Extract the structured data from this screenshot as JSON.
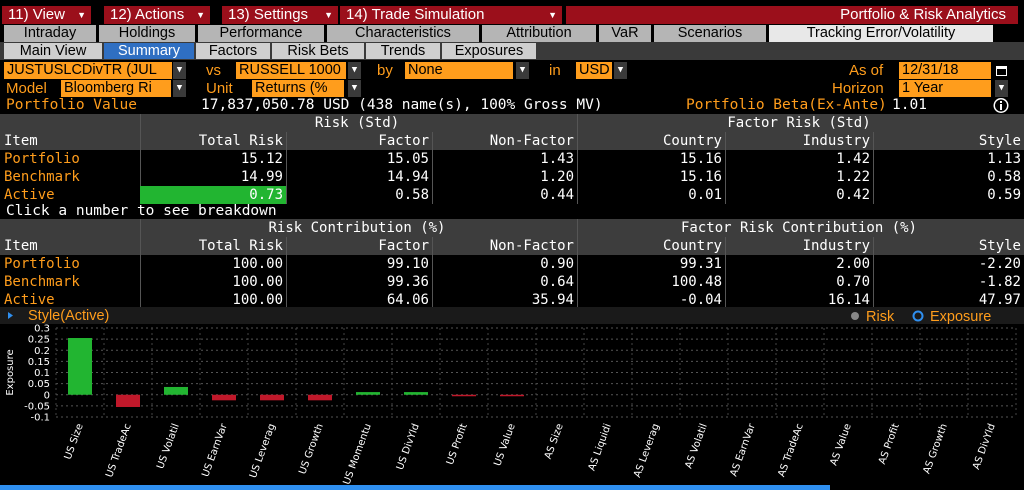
{
  "menu": {
    "items": [
      {
        "label": "11) View"
      },
      {
        "label": "12) Actions"
      },
      {
        "label": "13) Settings"
      },
      {
        "label": "14) Trade Simulation"
      }
    ],
    "app_title": "Portfolio & Risk Analytics"
  },
  "tabs": [
    "Intraday",
    "Holdings",
    "Performance",
    "Characteristics",
    "Attribution",
    "VaR",
    "Scenarios",
    "Tracking Error/Volatility"
  ],
  "active_tab": "Tracking Error/Volatility",
  "subtabs": [
    "Main View",
    "Summary",
    "Factors",
    "Risk Bets",
    "Trends",
    "Exposures"
  ],
  "active_subtab": "Summary",
  "selectors": {
    "portfolio": "JUSTUSLCDivTR (JUL",
    "vs_label": "vs",
    "benchmark": "RUSSELL 1000",
    "by_label": "by",
    "by": "None",
    "in_label": "in",
    "currency": "USD",
    "as_of_label": "As of",
    "as_of": "12/31/18",
    "model_label": "Model",
    "model": "Bloomberg Ri",
    "unit_label": "Unit",
    "unit": "Returns (%",
    "horizon_label": "Horizon",
    "horizon": "1 Year"
  },
  "summary": {
    "pv_label": "Portfolio Value",
    "pv_value": "17,837,050.78 USD (438 name(s), 100% Gross MV)",
    "beta_label": "Portfolio Beta(Ex-Ante)",
    "beta_value": "1.01"
  },
  "risk_table": {
    "group1": "Risk (Std)",
    "group2": "Factor Risk (Std)",
    "columns": [
      "Item",
      "Total Risk",
      "Factor",
      "Non-Factor",
      "Country",
      "Industry",
      "Style"
    ],
    "rows": [
      {
        "item": "Portfolio",
        "values": [
          "15.12",
          "15.05",
          "1.43",
          "15.16",
          "1.42",
          "1.13"
        ]
      },
      {
        "item": "Benchmark",
        "values": [
          "14.99",
          "14.94",
          "1.20",
          "15.16",
          "1.22",
          "0.58"
        ]
      },
      {
        "item": "Active",
        "values": [
          "0.73",
          "0.58",
          "0.44",
          "0.01",
          "0.42",
          "0.59"
        ]
      }
    ]
  },
  "click_hint": "Click a number to see breakdown",
  "contrib_table": {
    "group1": "Risk Contribution (%)",
    "group2": "Factor Risk Contribution (%)",
    "columns": [
      "Item",
      "Total Risk",
      "Factor",
      "Non-Factor",
      "Country",
      "Industry",
      "Style"
    ],
    "rows": [
      {
        "item": "Portfolio",
        "values": [
          "100.00",
          "99.10",
          "0.90",
          "99.31",
          "2.00",
          "-2.20"
        ]
      },
      {
        "item": "Benchmark",
        "values": [
          "100.00",
          "99.36",
          "0.64",
          "100.48",
          "0.70",
          "-1.82"
        ]
      },
      {
        "item": "Active",
        "values": [
          "100.00",
          "64.06",
          "35.94",
          "-0.04",
          "16.14",
          "47.97"
        ]
      }
    ]
  },
  "chart_header": {
    "title": "Style(Active)",
    "legend_risk": "Risk",
    "legend_exposure": "Exposure"
  },
  "colors": {
    "accent_orange": "#ff9d1c",
    "menu_red": "#9b0f1b",
    "positive_green": "#22b531",
    "negative_red": "#c0182a"
  },
  "chart_data": {
    "type": "bar",
    "title": "Style(Active)",
    "ylabel": "Exposure",
    "xlabel": "",
    "ylim": [
      -0.1,
      0.3
    ],
    "yticks": [
      -0.1,
      -0.05,
      0,
      0.05,
      0.1,
      0.15,
      0.2,
      0.25,
      0.3
    ],
    "grid": true,
    "legend": [
      "Risk",
      "Exposure"
    ],
    "categories": [
      "US Size",
      "US TradeAc",
      "US Volatil",
      "US EarnVar",
      "US Leverag",
      "US Growth",
      "US Momentu",
      "US DivYld",
      "US Profit",
      "US Value",
      "AS Size",
      "AS Liquidi",
      "AS Leverag",
      "AS Volatil",
      "AS EarnVar",
      "AS TradeAc",
      "AS Value",
      "AS Profit",
      "AS Growth",
      "AS DivYld"
    ],
    "values": [
      0.255,
      -0.055,
      0.035,
      -0.025,
      -0.025,
      -0.025,
      0.012,
      0.012,
      -0.005,
      -0.003,
      0,
      0,
      0,
      0,
      0,
      0,
      0,
      0,
      0,
      0
    ]
  }
}
